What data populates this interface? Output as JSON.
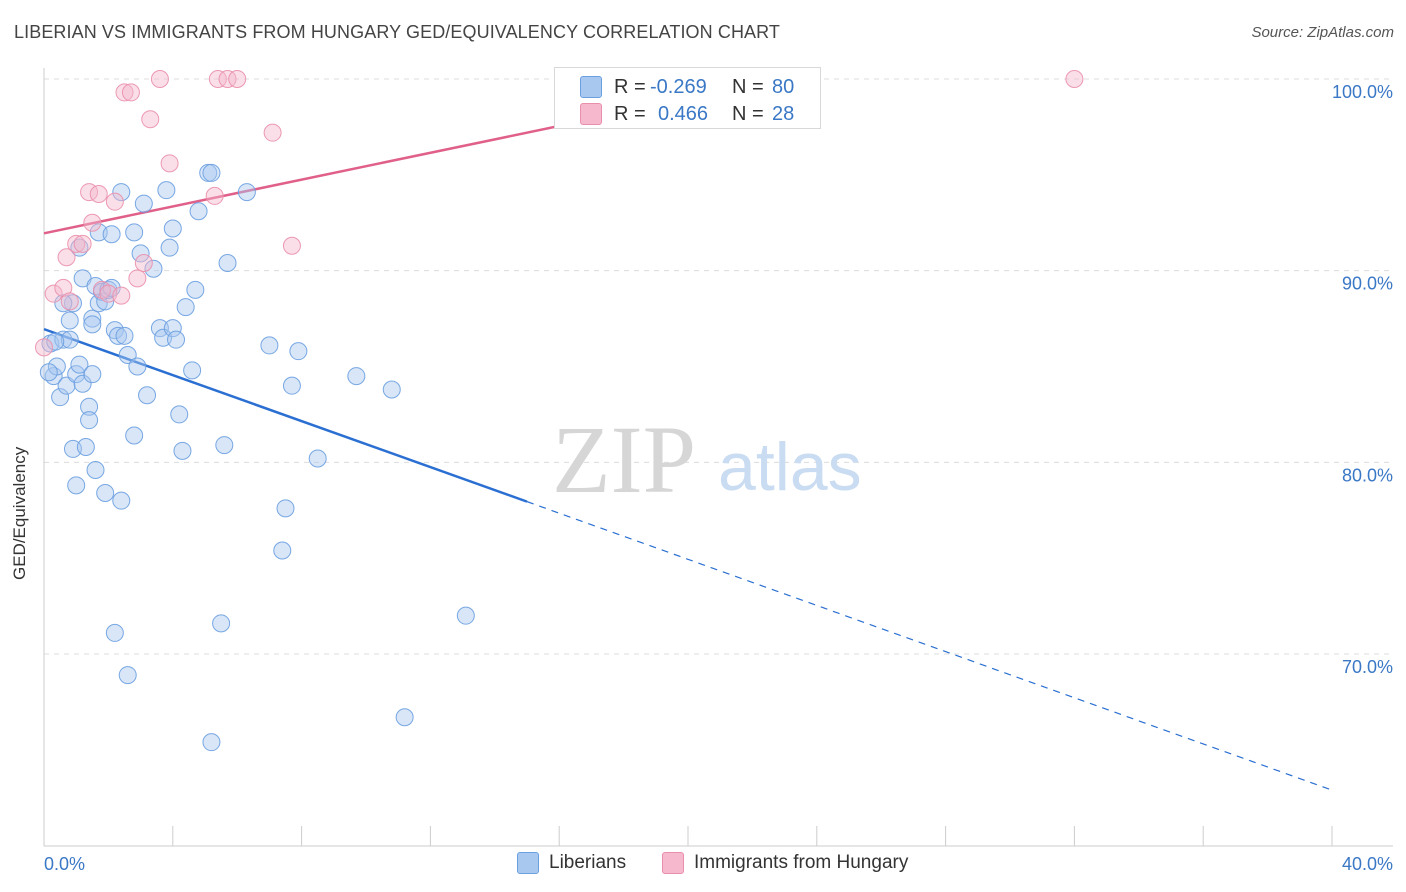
{
  "header": {
    "title": "LIBERIAN VS IMMIGRANTS FROM HUNGARY GED/EQUIVALENCY CORRELATION CHART",
    "source": "Source: ZipAtlas.com"
  },
  "watermark": {
    "zip": "ZIP",
    "atlas": "atlas"
  },
  "stats": [
    {
      "r_label": "R =",
      "r_value": "-0.269",
      "n_label": "N =",
      "n_value": "80",
      "color": "#a9c8f0"
    },
    {
      "r_label": "R =",
      "r_value": "0.466",
      "n_label": "N =",
      "n_value": "28",
      "color": "#f5b8cc"
    }
  ],
  "legend": [
    {
      "label": "Liberians",
      "color": "#a9c8f0"
    },
    {
      "label": "Immigrants from Hungary",
      "color": "#f5b8cc"
    }
  ],
  "chart_data": {
    "type": "scatter",
    "title": "LIBERIAN VS IMMIGRANTS FROM HUNGARY GED/EQUIVALENCY CORRELATION CHART",
    "xlabel": "",
    "ylabel": "GED/Equivalency",
    "xlim": [
      0,
      40
    ],
    "ylim": [
      61,
      101.5
    ],
    "x_tick_labels": [
      "0.0%",
      "40.0%"
    ],
    "y_ticks": [
      70,
      80,
      90,
      100
    ],
    "y_tick_labels": [
      "70.0%",
      "80.0%",
      "90.0%",
      "100.0%"
    ],
    "grid": true,
    "legend_position": "bottom",
    "colors": {
      "liberians_point": "#a9c8f0",
      "liberians_edge": "#6a9fe0",
      "liberians_line": "#2a6fd1",
      "hungary_point": "#f5b8cc",
      "hungary_edge": "#ea8fab",
      "hungary_line": "#e0608a"
    },
    "series": [
      {
        "name": "Liberians",
        "points": [
          [
            0.2,
            86.2
          ],
          [
            0.3,
            84.5
          ],
          [
            0.4,
            85.0
          ],
          [
            0.5,
            83.4
          ],
          [
            0.6,
            86.4
          ],
          [
            0.7,
            84.0
          ],
          [
            0.8,
            86.4
          ],
          [
            0.8,
            87.4
          ],
          [
            0.9,
            80.7
          ],
          [
            0.9,
            88.3
          ],
          [
            1.0,
            78.8
          ],
          [
            1.0,
            84.6
          ],
          [
            1.1,
            91.2
          ],
          [
            1.1,
            85.1
          ],
          [
            1.2,
            84.1
          ],
          [
            1.2,
            89.6
          ],
          [
            1.3,
            80.8
          ],
          [
            1.4,
            82.9
          ],
          [
            1.4,
            82.2
          ],
          [
            1.5,
            87.5
          ],
          [
            1.5,
            87.2
          ],
          [
            1.6,
            89.2
          ],
          [
            1.6,
            79.6
          ],
          [
            1.7,
            92.0
          ],
          [
            1.7,
            88.3
          ],
          [
            1.8,
            88.9
          ],
          [
            1.9,
            78.4
          ],
          [
            1.9,
            88.4
          ],
          [
            2.0,
            89.0
          ],
          [
            2.1,
            89.1
          ],
          [
            2.1,
            91.9
          ],
          [
            2.2,
            86.9
          ],
          [
            2.3,
            86.6
          ],
          [
            2.4,
            94.1
          ],
          [
            2.4,
            78.0
          ],
          [
            2.5,
            86.6
          ],
          [
            2.6,
            85.6
          ],
          [
            2.8,
            92.0
          ],
          [
            2.8,
            81.4
          ],
          [
            2.9,
            85.0
          ],
          [
            3.0,
            90.9
          ],
          [
            3.1,
            93.5
          ],
          [
            3.2,
            83.5
          ],
          [
            3.4,
            90.1
          ],
          [
            3.6,
            87.0
          ],
          [
            3.7,
            86.5
          ],
          [
            3.8,
            94.2
          ],
          [
            3.9,
            91.2
          ],
          [
            4.0,
            87.0
          ],
          [
            4.0,
            92.2
          ],
          [
            4.1,
            86.4
          ],
          [
            4.2,
            82.5
          ],
          [
            4.3,
            80.6
          ],
          [
            4.4,
            88.1
          ],
          [
            4.6,
            84.8
          ],
          [
            4.7,
            89.0
          ],
          [
            4.8,
            93.1
          ],
          [
            5.1,
            95.1
          ],
          [
            5.2,
            95.1
          ],
          [
            5.5,
            71.6
          ],
          [
            5.6,
            80.9
          ],
          [
            5.7,
            90.4
          ],
          [
            6.3,
            94.1
          ],
          [
            7.0,
            86.1
          ],
          [
            7.4,
            75.4
          ],
          [
            7.5,
            77.6
          ],
          [
            7.7,
            84.0
          ],
          [
            7.9,
            85.8
          ],
          [
            8.5,
            80.2
          ],
          [
            9.7,
            84.5
          ],
          [
            10.8,
            83.8
          ],
          [
            11.2,
            66.7
          ],
          [
            13.1,
            72.0
          ],
          [
            2.6,
            68.9
          ],
          [
            2.2,
            71.1
          ],
          [
            5.2,
            65.4
          ],
          [
            0.15,
            84.7
          ],
          [
            0.6,
            88.3
          ],
          [
            0.35,
            86.3
          ],
          [
            1.5,
            84.6
          ]
        ]
      },
      {
        "name": "Immigrants from Hungary",
        "points": [
          [
            0.0,
            86.0
          ],
          [
            0.3,
            88.8
          ],
          [
            0.6,
            89.1
          ],
          [
            0.7,
            90.7
          ],
          [
            0.8,
            88.4
          ],
          [
            1.0,
            91.4
          ],
          [
            1.2,
            91.4
          ],
          [
            1.4,
            94.1
          ],
          [
            1.5,
            92.5
          ],
          [
            1.7,
            94.0
          ],
          [
            1.8,
            89.0
          ],
          [
            2.0,
            88.8
          ],
          [
            2.2,
            93.6
          ],
          [
            2.4,
            88.7
          ],
          [
            2.5,
            99.3
          ],
          [
            2.7,
            99.3
          ],
          [
            2.9,
            89.6
          ],
          [
            3.1,
            90.4
          ],
          [
            3.3,
            97.9
          ],
          [
            3.6,
            100.0
          ],
          [
            3.9,
            95.6
          ],
          [
            5.3,
            93.9
          ],
          [
            5.4,
            100.0
          ],
          [
            5.7,
            100.0
          ],
          [
            6.0,
            100.0
          ],
          [
            7.1,
            97.2
          ],
          [
            7.7,
            91.3
          ],
          [
            32.0,
            100.0
          ]
        ]
      }
    ],
    "trend_lines": [
      {
        "name": "Liberians",
        "x": [
          0,
          15
        ],
        "y": [
          86.95,
          77.95
        ],
        "extended_x": [
          15,
          40
        ],
        "extended_y": [
          77.95,
          62.9
        ]
      },
      {
        "name": "Immigrants from Hungary",
        "x": [
          0,
          23
        ],
        "y": [
          91.95,
          100.0
        ]
      }
    ]
  }
}
